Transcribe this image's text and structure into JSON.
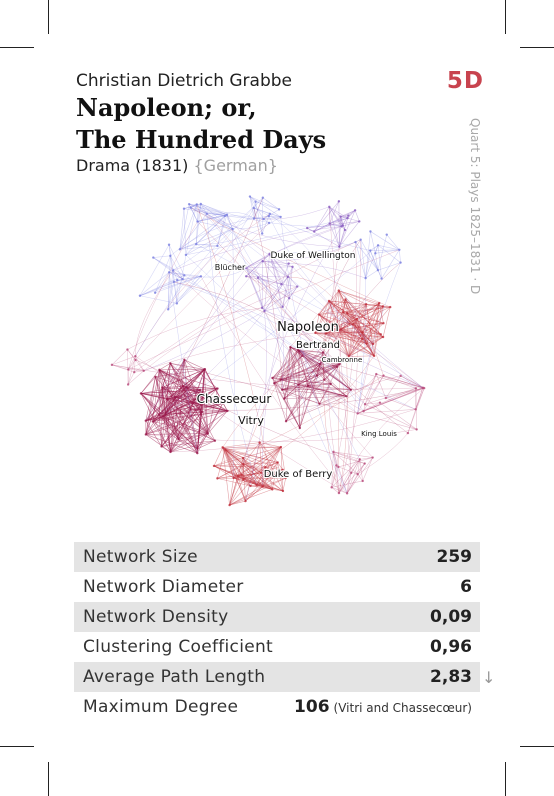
{
  "card": {
    "author": "Christian Dietrich Grabbe",
    "code": "5D",
    "title_line1": "Napoleon; or,",
    "title_line2": "The Hundred Days",
    "genre": "Drama (1831)",
    "language": "{German}",
    "series": "Quart 5: Plays 1825–1831 · D"
  },
  "network": {
    "labels": [
      "Blücher",
      "Duke of Wellington",
      "Napoleon",
      "Bertrand",
      "Cambronne",
      "Chassecœur",
      "Vitry",
      "King Louis",
      "Duke of Berry"
    ],
    "colors": {
      "blue": "#7b7fe0",
      "purple": "#8a5cc0",
      "red": "#c0303c",
      "crimson": "#9a1a4c",
      "pink": "#b84a7a"
    }
  },
  "stats": [
    {
      "label": "Network Size",
      "value": "259"
    },
    {
      "label": "Network Diameter",
      "value": "6"
    },
    {
      "label": "Network Density",
      "value": "0,09"
    },
    {
      "label": "Clustering Coefficient",
      "value": "0,96"
    },
    {
      "label": "Average Path Length",
      "value": "2,83"
    }
  ],
  "max_degree": {
    "label": "Maximum Degree",
    "value": "106",
    "note": "(Vitri and Chassecœur)"
  },
  "icons": {
    "arrow": "↓"
  }
}
